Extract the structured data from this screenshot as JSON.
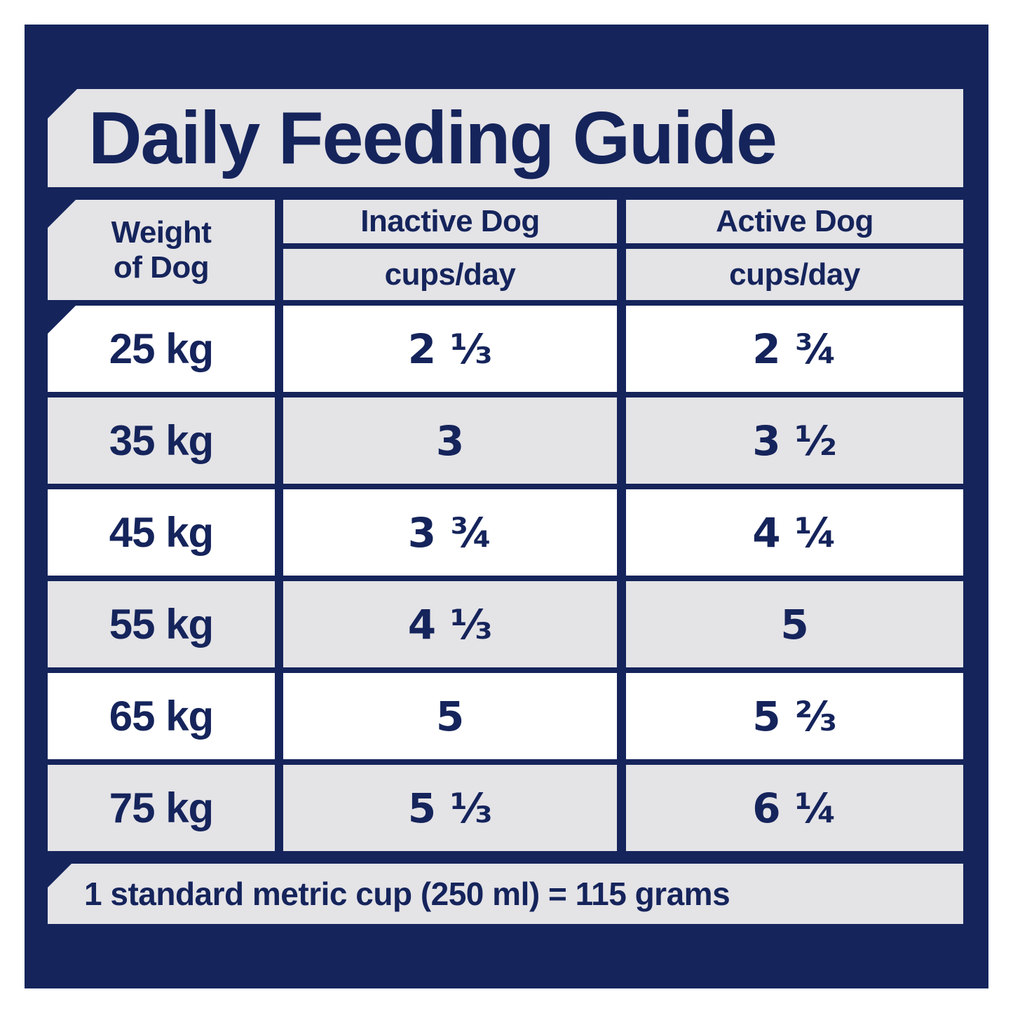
{
  "title": "Daily Feeding Guide",
  "colors": {
    "navy": "#15245B",
    "cell_gray": "#E4E3E6",
    "cell_white": "#FFFFFF"
  },
  "table": {
    "weight_header": {
      "line1": "Weight",
      "line2": "of Dog"
    },
    "inactive_header": "Inactive Dog",
    "active_header": "Active Dog",
    "unit_label": "cups/day",
    "rows": [
      {
        "weight": "25 kg",
        "inactive": "2 ⅓",
        "active": "2 ¾"
      },
      {
        "weight": "35 kg",
        "inactive": "3",
        "active": "3 ½"
      },
      {
        "weight": "45 kg",
        "inactive": "3 ¾",
        "active": "4 ¼"
      },
      {
        "weight": "55 kg",
        "inactive": "4 ⅓",
        "active": "5"
      },
      {
        "weight": "65 kg",
        "inactive": "5",
        "active": "5 ⅔"
      },
      {
        "weight": "75 kg",
        "inactive": "5 ⅓",
        "active": "6 ¼"
      }
    ]
  },
  "footer": {
    "note": "1 standard metric cup (250 ml) = 115 grams"
  }
}
